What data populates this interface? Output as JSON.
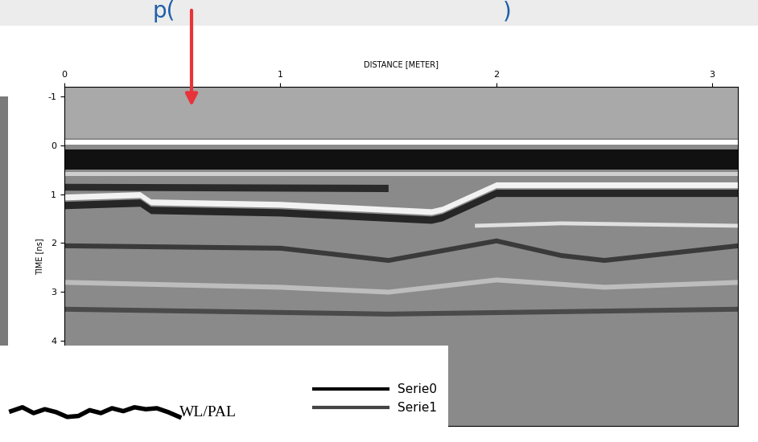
{
  "header_fragments": [
    "p(",
    ")"
  ],
  "chart_data": {
    "type": "radargram",
    "xlabel": "DISTANCE [METER]",
    "ylabel": "TIME [ns]",
    "xlim": [
      0,
      3.12
    ],
    "xticks": [
      0,
      1,
      2,
      3
    ],
    "ylim": [
      5.75,
      -1.2
    ],
    "yticks": [
      -1,
      0,
      1,
      2,
      3,
      4
    ],
    "background": "#8a8a8a",
    "horizons": [
      {
        "color": "#a9a9a9",
        "x": [
          0,
          3.12
        ],
        "top": [
          -1.2,
          -1.2
        ],
        "bottom": [
          -0.14,
          -0.14
        ]
      },
      {
        "color": "#ffffff",
        "x": [
          0,
          3.12
        ],
        "top": [
          -0.12,
          -0.12
        ],
        "bottom": [
          -0.02,
          -0.02
        ]
      },
      {
        "color": "#111111",
        "x": [
          0,
          3.12
        ],
        "top": [
          0.08,
          0.08
        ],
        "bottom": [
          0.5,
          0.5
        ]
      },
      {
        "color": "#cfcfcf",
        "x": [
          0,
          3.12
        ],
        "top": [
          0.55,
          0.55
        ],
        "bottom": [
          0.62,
          0.62
        ]
      },
      {
        "color": "#2a2a2a",
        "x": [
          0,
          1.5
        ],
        "top": [
          0.78,
          0.8
        ],
        "bottom": [
          0.92,
          0.95
        ]
      },
      {
        "color": "#f2f2f2",
        "x": [
          0,
          0.35,
          0.4,
          1.0,
          1.7,
          1.75,
          2.0,
          3.12
        ],
        "top": [
          1.0,
          0.95,
          1.1,
          1.15,
          1.3,
          1.25,
          0.75,
          0.75
        ],
        "bottom": [
          1.12,
          1.07,
          1.22,
          1.27,
          1.42,
          1.37,
          0.87,
          0.87
        ]
      },
      {
        "color": "#262626",
        "x": [
          0,
          0.35,
          0.4,
          1.0,
          1.7,
          1.75,
          2.0,
          3.12
        ],
        "top": [
          1.15,
          1.1,
          1.25,
          1.3,
          1.45,
          1.4,
          0.9,
          0.9
        ],
        "bottom": [
          1.3,
          1.25,
          1.4,
          1.45,
          1.6,
          1.55,
          1.05,
          1.05
        ]
      },
      {
        "color": "#e0e0e0",
        "x": [
          1.9,
          2.3,
          3.12
        ],
        "top": [
          1.6,
          1.55,
          1.6
        ],
        "bottom": [
          1.68,
          1.63,
          1.68
        ]
      },
      {
        "color": "#3a3a3a",
        "x": [
          0,
          1.0,
          1.5,
          2.0,
          2.3,
          2.5,
          3.12
        ],
        "top": [
          2.0,
          2.05,
          2.3,
          1.9,
          2.2,
          2.3,
          2.0
        ],
        "bottom": [
          2.1,
          2.15,
          2.4,
          2.0,
          2.3,
          2.4,
          2.1
        ]
      },
      {
        "color": "#bdbdbd",
        "x": [
          0,
          1.0,
          1.5,
          2.0,
          2.5,
          3.12
        ],
        "top": [
          2.75,
          2.85,
          2.95,
          2.7,
          2.85,
          2.75
        ],
        "bottom": [
          2.85,
          2.95,
          3.05,
          2.8,
          2.95,
          2.85
        ]
      },
      {
        "color": "#4a4a4a",
        "x": [
          0,
          1.5,
          3.12
        ],
        "top": [
          3.3,
          3.4,
          3.3
        ],
        "bottom": [
          3.4,
          3.5,
          3.4
        ]
      }
    ]
  },
  "inset": {
    "title": "WL/PAL",
    "legend": "upper right",
    "xlim": [
      0,
      40
    ],
    "ylim": [
      0,
      10
    ],
    "series": [
      {
        "name": "Serie0",
        "color": "#000000",
        "x": [
          1,
          2,
          3,
          4,
          5,
          6,
          7,
          8,
          9,
          10,
          11,
          12,
          13,
          14,
          15,
          16
        ],
        "values": [
          3.2,
          3.6,
          3.0,
          3.4,
          3.1,
          2.6,
          2.7,
          3.3,
          3.0,
          3.5,
          3.2,
          3.6,
          3.4,
          3.5,
          3.1,
          2.6
        ]
      },
      {
        "name": "Serie1",
        "color": "#444444"
      }
    ]
  }
}
